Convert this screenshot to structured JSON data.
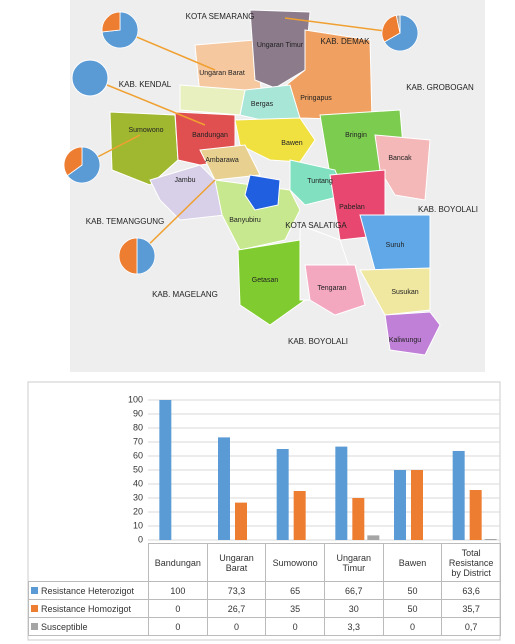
{
  "map": {
    "regions": [
      "KOTA SEMARANG",
      "KAB. DEMAK",
      "KAB. KENDAL",
      "KAB. GROBOGAN",
      "KAB. TEMANGGUNG",
      "KAB. BOYOLALI",
      "KAB. MAGELANG",
      "KAB. BOYOLALI",
      "KOTA SALATIGA"
    ],
    "districts": [
      "Ungaran Timur",
      "Ungaran Barat",
      "Bergas",
      "Pringapus",
      "Bringin",
      "Bancak",
      "Sumowono",
      "Bandungan",
      "Bawen",
      "Ambarawa",
      "Jambu",
      "Tuntang",
      "Pabelan",
      "Banyubiru",
      "Getasan",
      "Suruh",
      "Tengaran",
      "Susukan",
      "Kaliwungu"
    ]
  },
  "chart_data": {
    "type": "bar",
    "categories": [
      "Bandungan",
      "Ungaran Barat",
      "Sumowono",
      "Ungaran Timur",
      "Bawen",
      "Total Resistance by District"
    ],
    "series": [
      {
        "name": "Resistance Heterozigot",
        "color": "#5b9bd5",
        "values": [
          100,
          73.3,
          65,
          66.7,
          50,
          63.6
        ],
        "value_labels": [
          "100",
          "73,3",
          "65",
          "66,7",
          "50",
          "63,6"
        ]
      },
      {
        "name": "Resistance Homozigot",
        "color": "#ed7d31",
        "values": [
          0,
          26.7,
          35,
          30,
          50,
          35.7
        ],
        "value_labels": [
          "0",
          "26,7",
          "35",
          "30",
          "50",
          "35,7"
        ]
      },
      {
        "name": "Susceptible",
        "color": "#a5a5a5",
        "values": [
          0,
          0,
          0,
          3.3,
          0,
          0.7
        ],
        "value_labels": [
          "0",
          "0",
          "0",
          "3,3",
          "0",
          "0,7"
        ]
      }
    ],
    "ylim": [
      0,
      100
    ],
    "yticks": [
      0,
      10,
      20,
      30,
      40,
      50,
      60,
      70,
      80,
      90,
      100
    ],
    "grid": true
  }
}
